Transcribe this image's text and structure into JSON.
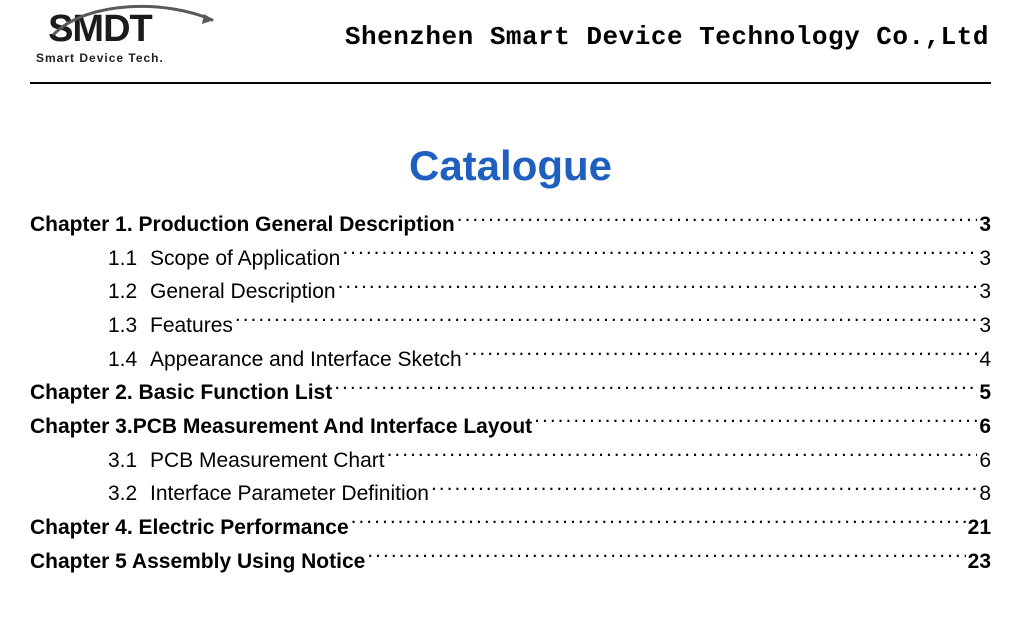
{
  "header": {
    "logo_main": "SMDT",
    "logo_sub": "Smart  Device Tech.",
    "company": "Shenzhen Smart Device Technology Co.,Ltd"
  },
  "title": {
    "text": "Catalogue",
    "color": "#1f5fbf",
    "fontsize": 42
  },
  "toc": [
    {
      "level": 0,
      "label": "Chapter 1. Production General Description",
      "page": "3"
    },
    {
      "level": 1,
      "num": "1.1",
      "label": "Scope of Application",
      "page": "3"
    },
    {
      "level": 1,
      "num": "1.2",
      "label": "General Description",
      "page": "3"
    },
    {
      "level": 1,
      "num": "1.3",
      "label": "Features",
      "page": "3"
    },
    {
      "level": 1,
      "num": "1.4",
      "label": "Appearance and Interface Sketch",
      "page": "4"
    },
    {
      "level": 0,
      "label": "Chapter 2. Basic Function List",
      "page": "5"
    },
    {
      "level": 0,
      "label": "Chapter 3.PCB Measurement And Interface Layout",
      "page": "6"
    },
    {
      "level": 1,
      "num": "3.1",
      "label": "PCB Measurement Chart",
      "page": "6"
    },
    {
      "level": 1,
      "num": "3.2",
      "label": "Interface Parameter Definition",
      "page": "8"
    },
    {
      "level": 0,
      "label": "Chapter 4. Electric Performance",
      "page": "21"
    },
    {
      "level": 0,
      "label": "Chapter 5 Assembly Using Notice",
      "page": "23"
    }
  ],
  "colors": {
    "text": "#000000",
    "title": "#1f5fbf",
    "rule": "#000000",
    "background": "#ffffff"
  }
}
